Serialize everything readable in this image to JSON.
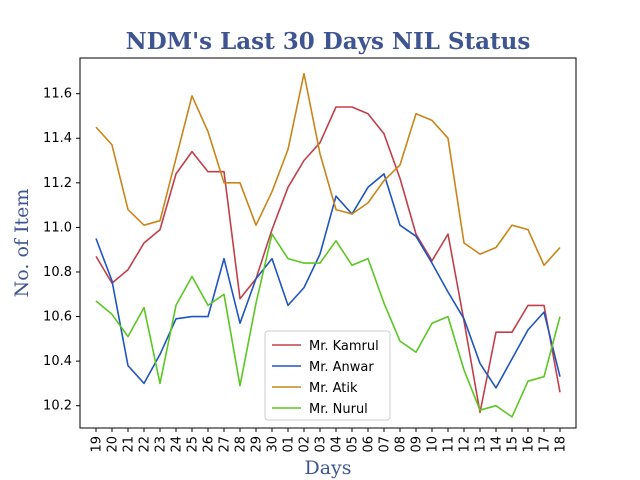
{
  "chart_data": {
    "type": "line",
    "title": "NDM's Last 30 Days NIL Status",
    "xlabel": "Days",
    "ylabel": "No. of Item",
    "categories": [
      "19",
      "20",
      "21",
      "22",
      "23",
      "24",
      "25",
      "26",
      "27",
      "28",
      "29",
      "30",
      "01",
      "02",
      "03",
      "04",
      "05",
      "06",
      "07",
      "08",
      "09",
      "10",
      "11",
      "12",
      "13",
      "14",
      "15",
      "16",
      "17",
      "18"
    ],
    "ylim": [
      10.1,
      11.76
    ],
    "yticks": [
      "10.2",
      "10.4",
      "10.6",
      "10.8",
      "11.0",
      "11.2",
      "11.4",
      "11.6"
    ],
    "grid": false,
    "legend_position": "bottom-center",
    "series": [
      {
        "name": "Mr. Kamrul",
        "color": "#c0404a",
        "values": [
          10.87,
          10.75,
          10.81,
          10.93,
          10.99,
          11.24,
          11.34,
          11.25,
          11.25,
          10.68,
          10.77,
          10.99,
          11.18,
          11.3,
          11.38,
          11.54,
          11.54,
          11.51,
          11.42,
          11.22,
          10.97,
          10.85,
          10.97,
          10.58,
          10.17,
          10.53,
          10.53,
          10.65,
          10.65,
          10.26
        ]
      },
      {
        "name": "Mr. Anwar",
        "color": "#1f55c0",
        "values": [
          10.95,
          10.76,
          10.38,
          10.3,
          10.43,
          10.59,
          10.6,
          10.6,
          10.86,
          10.57,
          10.77,
          10.86,
          10.65,
          10.73,
          10.88,
          11.14,
          11.06,
          11.18,
          11.24,
          11.01,
          10.96,
          10.84,
          10.71,
          10.59,
          10.39,
          10.28,
          10.41,
          10.54,
          10.62,
          10.33
        ]
      },
      {
        "name": "Mr. Atik",
        "color": "#c8861a",
        "values": [
          11.45,
          11.37,
          11.08,
          11.01,
          11.03,
          11.31,
          11.59,
          11.43,
          11.2,
          11.2,
          11.01,
          11.16,
          11.35,
          11.69,
          11.33,
          11.08,
          11.06,
          11.11,
          11.21,
          11.28,
          11.51,
          11.48,
          11.4,
          10.93,
          10.88,
          10.91,
          11.01,
          10.99,
          10.83,
          10.91
        ]
      },
      {
        "name": "Mr. Nurul",
        "color": "#5cc723",
        "values": [
          10.67,
          10.61,
          10.51,
          10.64,
          10.3,
          10.65,
          10.78,
          10.65,
          10.7,
          10.29,
          10.66,
          10.97,
          10.86,
          10.84,
          10.84,
          10.94,
          10.83,
          10.86,
          10.66,
          10.49,
          10.44,
          10.57,
          10.6,
          10.36,
          10.18,
          10.2,
          10.15,
          10.31,
          10.33,
          10.6
        ]
      }
    ]
  }
}
